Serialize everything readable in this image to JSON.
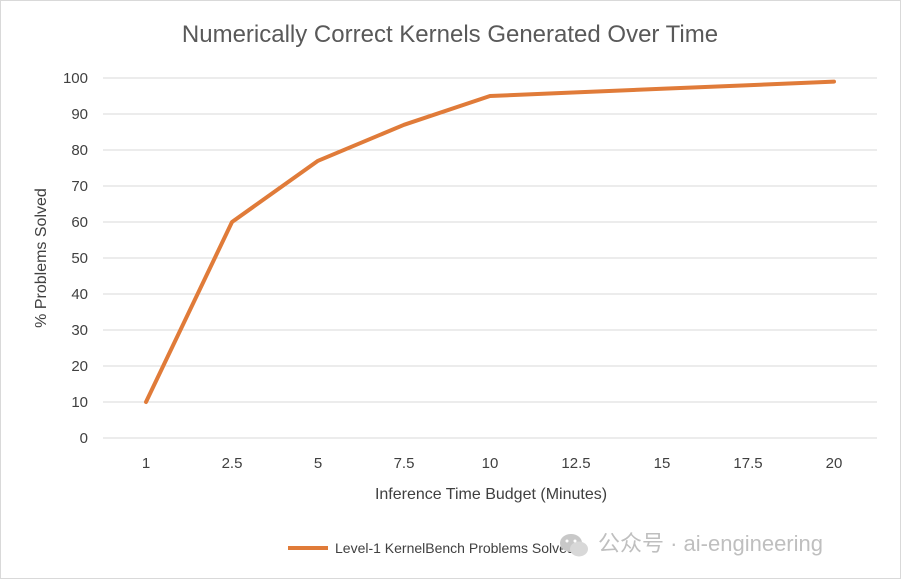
{
  "chart_data": {
    "type": "line",
    "title": "Numerically Correct Kernels Generated Over Time",
    "xlabel": "Inference Time Budget (Minutes)",
    "ylabel": "% Problems Solved",
    "categories": [
      "1",
      "2.5",
      "5",
      "7.5",
      "10",
      "12.5",
      "15",
      "17.5",
      "20"
    ],
    "series": [
      {
        "name": "Level-1 KernelBench Problems Solved",
        "values": [
          10,
          60,
          77,
          87,
          95,
          96,
          97,
          98,
          99
        ],
        "color": "#e07b39"
      }
    ],
    "ylim": [
      0,
      100
    ],
    "yticks": [
      "0",
      "10",
      "20",
      "30",
      "40",
      "50",
      "60",
      "70",
      "80",
      "90",
      "100"
    ],
    "grid": true,
    "legend_position": "bottom"
  },
  "watermark": {
    "text": "公众号 · ai-engineering",
    "icon": "wechat-icon"
  }
}
